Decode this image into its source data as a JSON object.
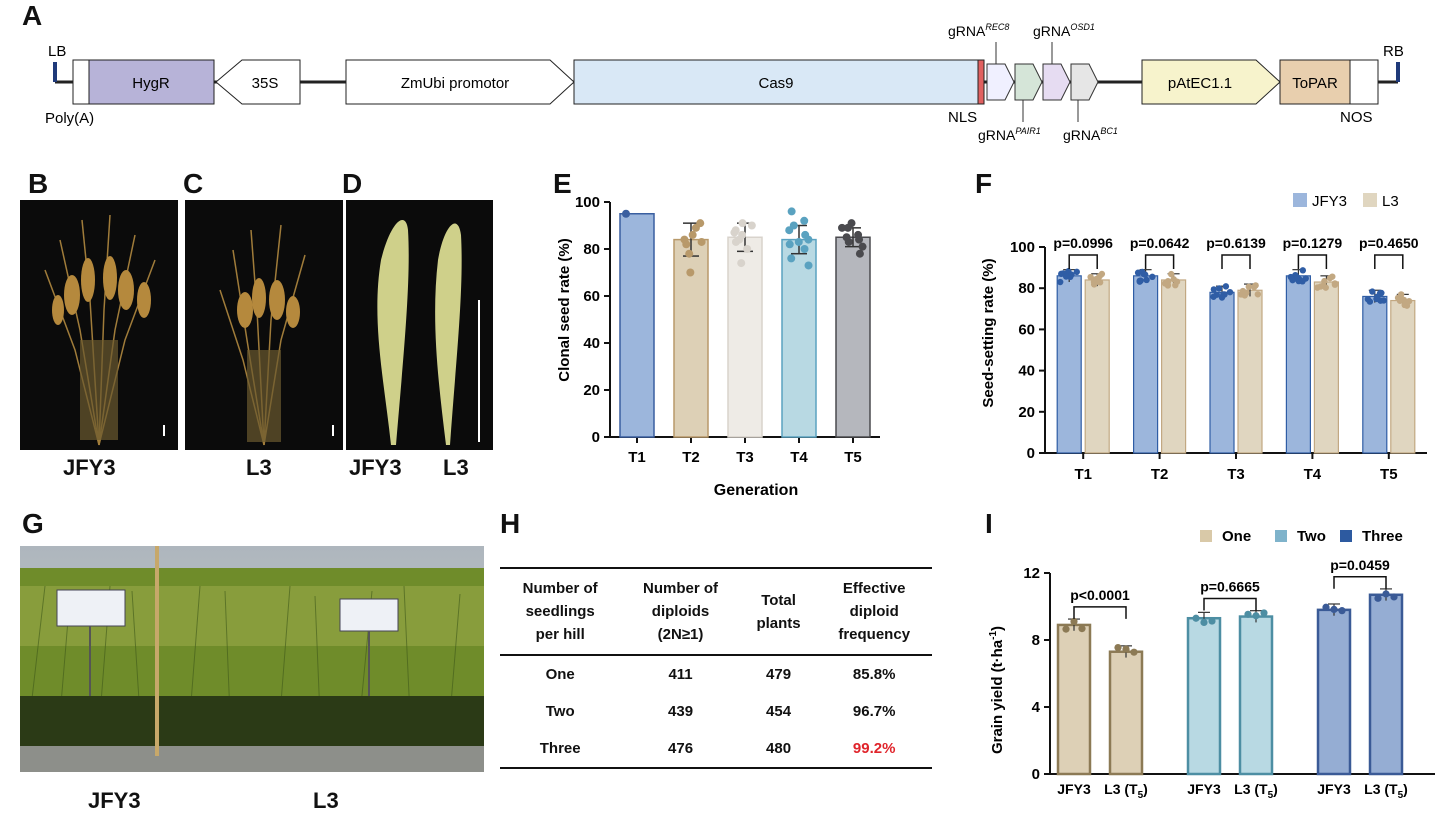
{
  "panels": {
    "A": "A",
    "B": "B",
    "C": "C",
    "D": "D",
    "E": "E",
    "F": "F",
    "G": "G",
    "H": "H",
    "I": "I"
  },
  "construct": {
    "lb": "LB",
    "rb": "RB",
    "polya": "Poly(A)",
    "hygr": "HygR",
    "p35s": "35S",
    "zmubi": "ZmUbi promotor",
    "cas9": "Cas9",
    "nls": "NLS",
    "grna": "gRNA",
    "rec8": "REC8",
    "osd1": "OSD1",
    "pair1": "PAIR1",
    "bc1": "BC1",
    "patec": "pAtEC1.1",
    "topar": "ToPAR",
    "nos": "NOS",
    "colors": {
      "hygr": "#b7b3d8",
      "cas9": "#d9e8f6",
      "patec": "#f7f3cc",
      "topar": "#e8cfae"
    }
  },
  "photos": {
    "b_caption": "JFY3",
    "c_caption": "L3",
    "d_caption_left": "JFY3",
    "d_caption_right": "L3",
    "g_caption_left": "JFY3",
    "g_caption_right": "L3"
  },
  "chart_data": [
    {
      "panel": "E",
      "type": "bar",
      "categories": [
        "T1",
        "T2",
        "T3",
        "T4",
        "T5"
      ],
      "values": [
        95,
        84,
        85,
        84,
        85
      ],
      "errors": [
        0,
        7,
        6,
        6,
        4
      ],
      "colors": [
        "#9cb6dc",
        "#ddd0b6",
        "#eeebe6",
        "#b8d9e3",
        "#b5b7bd"
      ],
      "point_colors": [
        "#3a5fa0",
        "#b8996a",
        "#d8d3cc",
        "#5aa2c0",
        "#4a4a4e"
      ],
      "points": [
        [
          95
        ],
        [
          89,
          82,
          78,
          84,
          86,
          83,
          91,
          70
        ],
        [
          90,
          87,
          83,
          88,
          80,
          84,
          91,
          74,
          86
        ],
        [
          92,
          86,
          80,
          84,
          76,
          88,
          83,
          90,
          73,
          82,
          96
        ],
        [
          89,
          86,
          83,
          85,
          81,
          89,
          91,
          78,
          84
        ]
      ],
      "xlabel": "Generation",
      "ylabel": "Clonal seed rate (%)",
      "ylim": [
        0,
        100
      ],
      "yticks": [
        "0",
        "20",
        "40",
        "60",
        "80",
        "100"
      ]
    },
    {
      "panel": "F",
      "type": "bar",
      "categories": [
        "T1",
        "T2",
        "T3",
        "T4",
        "T5"
      ],
      "series": [
        {
          "name": "JFY3",
          "values": [
            86,
            86,
            78,
            86,
            76
          ],
          "color": "#9cb6dc",
          "point_color": "#2f5da5"
        },
        {
          "name": "L3",
          "values": [
            84,
            84,
            79,
            83,
            74
          ],
          "color": "#e0d6c0",
          "point_color": "#c2a882"
        }
      ],
      "pvalues": [
        "p=0.0996",
        "p=0.0642",
        "p=0.6139",
        "p=0.1279",
        "p=0.4650"
      ],
      "ylabel": "Seed-setting rate (%)",
      "ylim": [
        0,
        100
      ],
      "yticks": [
        "0",
        "20",
        "40",
        "60",
        "80",
        "100"
      ]
    },
    {
      "panel": "I",
      "type": "bar",
      "groups": [
        "One",
        "Two",
        "Three"
      ],
      "categories": [
        "JFY3",
        "L3 (T5)",
        "JFY3",
        "L3 (T5)",
        "JFY3",
        "L3 (T5)"
      ],
      "values": [
        8.9,
        7.3,
        9.3,
        9.4,
        9.8,
        10.7
      ],
      "colors": [
        "#ddd0b6",
        "#b8d9e3",
        "#95add3"
      ],
      "edge_colors": [
        "#8c7a55",
        "#4d8ea3",
        "#3a5a96"
      ],
      "legend_colors": [
        "#d9c9a8",
        "#7fb3cb",
        "#2d5aa0"
      ],
      "pvalues": [
        "p<0.0001",
        "p=0.6665",
        "p=0.0459"
      ],
      "ylabel": "Grain yield (t·ha-1)",
      "ylim": [
        0,
        12
      ],
      "yticks": [
        "0",
        "4",
        "8",
        "12"
      ]
    }
  ],
  "table_h": {
    "headers": [
      [
        "Number of",
        "seedlings",
        "per hill"
      ],
      [
        "Number of",
        "diploids",
        "(2N≥1)"
      ],
      [
        "Total",
        "plants"
      ],
      [
        "Effective",
        "diploid",
        "frequency"
      ]
    ],
    "rows": [
      [
        "One",
        "411",
        "479",
        "85.8%"
      ],
      [
        "Two",
        "439",
        "454",
        "96.7%"
      ],
      [
        "Three",
        "476",
        "480",
        "99.2%"
      ]
    ],
    "highlight_color": "#e0242b"
  }
}
